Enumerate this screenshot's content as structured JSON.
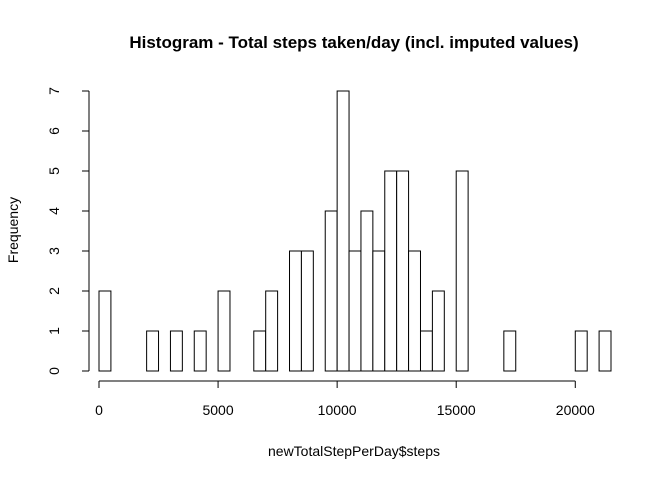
{
  "chart_data": {
    "type": "bar",
    "subtype": "histogram",
    "title": "Histogram - Total steps taken/day (incl. imputed values)",
    "xlabel": "newTotalStepPerDay$steps",
    "ylabel": "Frequency",
    "bin_width": 500,
    "bin_start": 0,
    "counts": [
      2,
      0,
      0,
      0,
      1,
      0,
      1,
      0,
      1,
      0,
      2,
      0,
      0,
      1,
      2,
      0,
      3,
      3,
      0,
      4,
      7,
      3,
      4,
      3,
      5,
      5,
      3,
      1,
      2,
      0,
      5,
      0,
      0,
      0,
      1,
      0,
      0,
      0,
      0,
      0,
      1,
      0,
      1
    ],
    "xlim": [
      0,
      21500
    ],
    "ylim": [
      0,
      7
    ],
    "x_ticks": [
      0,
      5000,
      10000,
      15000,
      20000
    ],
    "x_tick_labels": [
      "0",
      "5000",
      "10000",
      "15000",
      "20000"
    ],
    "y_ticks": [
      0,
      1,
      2,
      3,
      4,
      5,
      6,
      7
    ],
    "y_tick_labels": [
      "0",
      "1",
      "2",
      "3",
      "4",
      "5",
      "6",
      "7"
    ],
    "grid": false,
    "legend": "none",
    "bar_fill": "#ffffff",
    "bar_stroke": "#000000"
  }
}
